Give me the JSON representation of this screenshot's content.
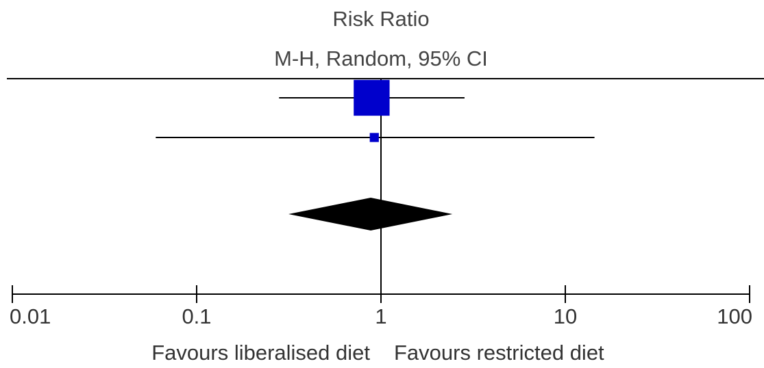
{
  "chart_data": {
    "type": "forest",
    "title": "Risk Ratio",
    "subtitle": "M-H, Random, 95% CI",
    "estimates": [
      0.89,
      0.92
    ],
    "ci_low": [
      0.28,
      0.06
    ],
    "ci_high": [
      2.84,
      14.4
    ],
    "weights": [
      94,
      6
    ],
    "pooled": {
      "estimate": 0.88,
      "ci_low": 0.315,
      "ci_high": 2.44
    },
    "xlim": [
      0.01,
      100
    ],
    "xticks": [
      0.01,
      0.1,
      1,
      10,
      100
    ],
    "log_scale": true,
    "reference": 1,
    "x_label_left": "Favours liberalised diet",
    "x_label_right": "Favours restricted diet",
    "color": "#0000cc",
    "pooled_color": "#000000"
  }
}
